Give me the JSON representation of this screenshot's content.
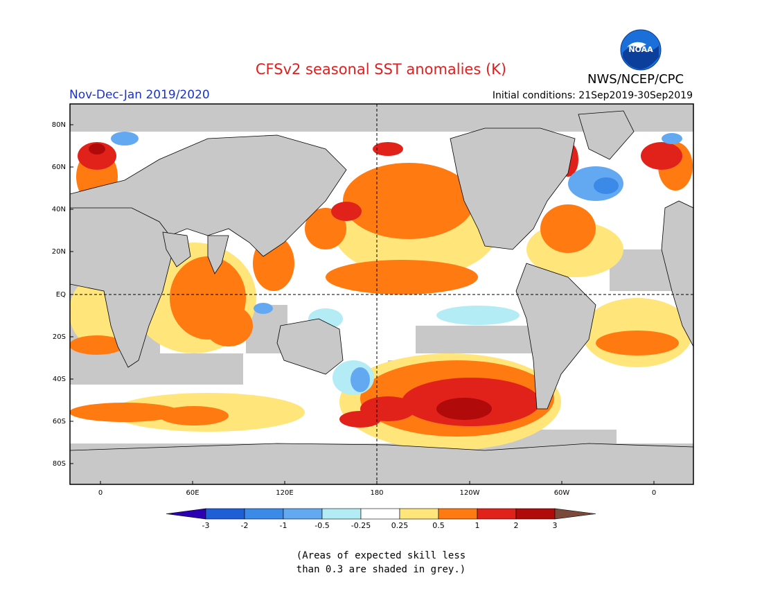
{
  "header": {
    "title": "CFSv2 seasonal SST anomalies (K)",
    "period": "Nov-Dec-Jan 2019/2020",
    "initial_conditions": "Initial conditions: 21Sep2019-30Sep2019",
    "agency": "NWS/NCEP/CPC",
    "logo_text": "NOAA"
  },
  "map": {
    "lat_labels": [
      "80N",
      "60N",
      "40N",
      "20N",
      "EQ",
      "20S",
      "40S",
      "60S",
      "80S"
    ],
    "lon_labels": [
      "0",
      "60E",
      "120E",
      "180",
      "120W",
      "60W",
      "0"
    ],
    "land_color": "#c8c8c8",
    "ocean_color": "#ffffff"
  },
  "colorbar": {
    "tick_labels": [
      "-3",
      "-2",
      "-1",
      "-0.5",
      "-0.25",
      "0.25",
      "0.5",
      "1",
      "2",
      "3"
    ],
    "colors": [
      "#2c00b3",
      "#1f5fd6",
      "#3c8ae8",
      "#63a9f2",
      "#b3ecf5",
      "#ffffff",
      "#ffe57a",
      "#ff7a10",
      "#e0221a",
      "#b00a0a",
      "#7a4a3a"
    ]
  },
  "note": {
    "line1": "(Areas of expected skill less",
    "line2": "than 0.3 are shaded in grey.)"
  }
}
